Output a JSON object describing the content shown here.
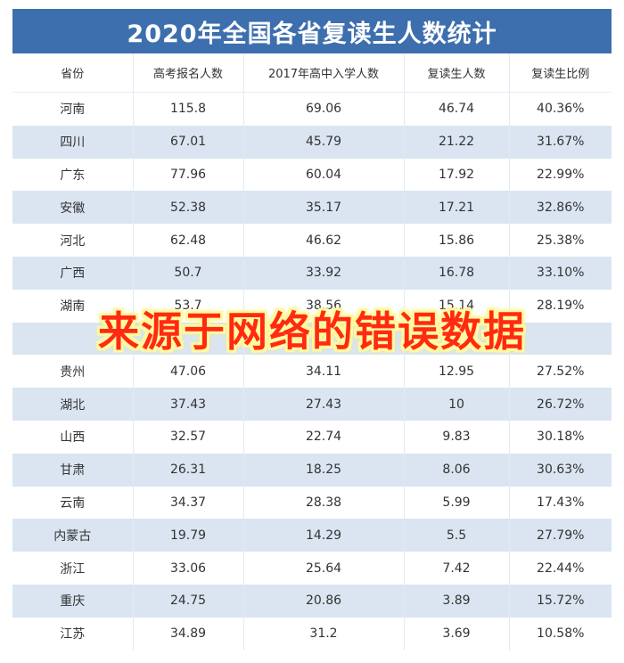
{
  "chart_data": {
    "type": "table",
    "title": "2020年全国各省复读生人数统计",
    "columns": [
      "省份",
      "高考报名人数",
      "2017年高中入学人数",
      "复读生人数",
      "复读生比例"
    ],
    "rows": [
      [
        "河南",
        "115.8",
        "69.06",
        "46.74",
        "40.36%"
      ],
      [
        "四川",
        "67.01",
        "45.79",
        "21.22",
        "31.67%"
      ],
      [
        "广东",
        "77.96",
        "60.04",
        "17.92",
        "22.99%"
      ],
      [
        "安徽",
        "52.38",
        "35.17",
        "17.21",
        "32.86%"
      ],
      [
        "河北",
        "62.48",
        "46.62",
        "15.86",
        "25.38%"
      ],
      [
        "广西",
        "50.7",
        "33.92",
        "16.78",
        "33.10%"
      ],
      [
        "湖南",
        "53.7",
        "38.56",
        "15.14",
        "28.19%"
      ],
      [
        "",
        "",
        "",
        "",
        ""
      ],
      [
        "贵州",
        "47.06",
        "34.11",
        "12.95",
        "27.52%"
      ],
      [
        "湖北",
        "37.43",
        "27.43",
        "10",
        "26.72%"
      ],
      [
        "山西",
        "32.57",
        "22.74",
        "9.83",
        "30.18%"
      ],
      [
        "甘肃",
        "26.31",
        "18.25",
        "8.06",
        "30.63%"
      ],
      [
        "云南",
        "34.37",
        "28.38",
        "5.99",
        "17.43%"
      ],
      [
        "内蒙古",
        "19.79",
        "14.29",
        "5.5",
        "27.79%"
      ],
      [
        "浙江",
        "33.06",
        "25.64",
        "7.42",
        "22.44%"
      ],
      [
        "重庆",
        "24.75",
        "20.86",
        "3.89",
        "15.72%"
      ],
      [
        "江苏",
        "34.89",
        "31.2",
        "3.69",
        "10.58%"
      ]
    ]
  },
  "watermark": "来源于网络的错误数据",
  "colors": {
    "header_bg": "#3d6fae",
    "stripe": "#dae5f1",
    "watermark_text": "#ff2a12",
    "watermark_outline": "#fff9a0"
  }
}
